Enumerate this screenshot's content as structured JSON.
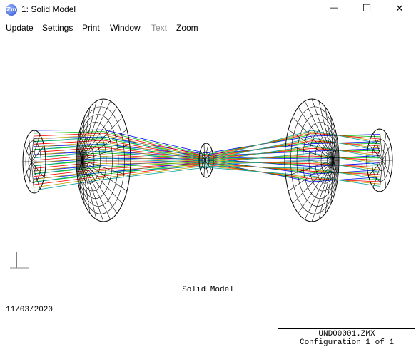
{
  "window": {
    "title": "1: Solid Model",
    "app_icon_label": "Zm",
    "minimize_glyph": "—",
    "maximize_glyph": "☐",
    "close_glyph": "✕"
  },
  "menu": {
    "items": [
      "Update",
      "Settings",
      "Print",
      "Window",
      "Text",
      "Zoom"
    ],
    "disabled": [
      "Text"
    ]
  },
  "plot": {
    "title": "Solid Model",
    "date": "11/03/2020",
    "filename": "UND00001.ZMX",
    "configuration": "Configuration 1 of 1"
  },
  "ray_colors": [
    "#0000ff",
    "#00c000",
    "#ff0000",
    "#c0a000",
    "#00a0a0"
  ]
}
